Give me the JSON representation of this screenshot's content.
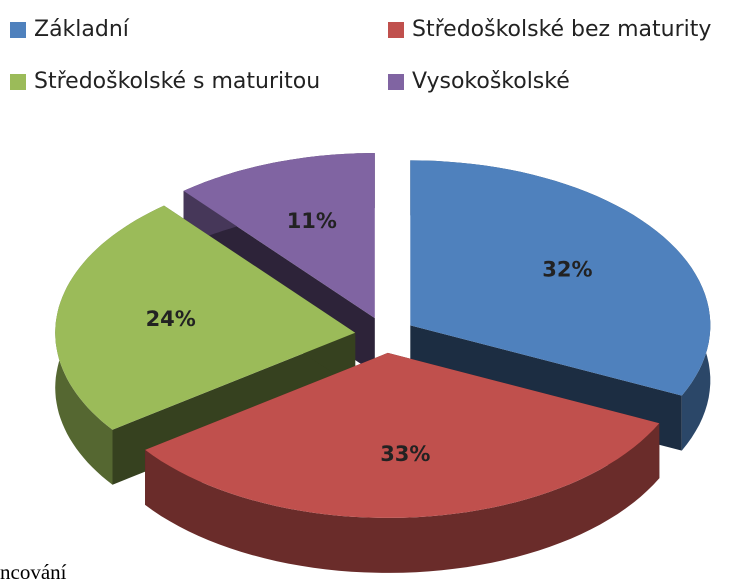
{
  "chart_data": {
    "type": "pie",
    "categories": [
      "Základní",
      "Středoškolské bez maturity",
      "Středoškolské s maturitou",
      "Vysokoškolské"
    ],
    "values": [
      32,
      33,
      24,
      11
    ],
    "value_labels": [
      "32%",
      "33%",
      "24%",
      "11%"
    ],
    "colors": [
      "#4f81bd",
      "#c0504d",
      "#9bbb59",
      "#8064a2"
    ],
    "legend": "top",
    "note": "ncování"
  }
}
